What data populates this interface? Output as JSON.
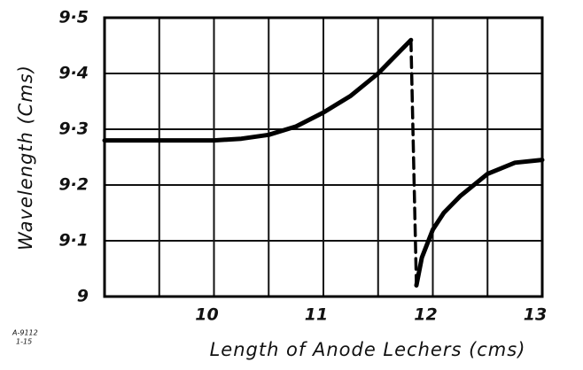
{
  "chart_data": {
    "type": "line",
    "xlabel": "Length of Anode Lechers (cms)",
    "ylabel": "Wavelength (Cms)",
    "annotations": [
      "A-9112",
      "1-15"
    ],
    "xlim": [
      9,
      13
    ],
    "ylim": [
      9,
      9.5
    ],
    "xticks": [
      10,
      11,
      12,
      13
    ],
    "yticks": [
      9,
      {
        "value": 9.1,
        "label": "9·1"
      },
      {
        "value": 9.2,
        "label": "9·2"
      },
      {
        "value": 9.3,
        "label": "9·3"
      },
      {
        "value": 9.4,
        "label": "9·4"
      },
      {
        "value": 9.5,
        "label": "9·5"
      }
    ],
    "xgrid": [
      9.5,
      10,
      10.5,
      11,
      11.5,
      12,
      12.5
    ],
    "grid": true,
    "series": [
      {
        "color": "#000000",
        "style": "solid",
        "x": [
          9,
          9.5,
          10,
          10.25,
          10.5,
          10.75,
          11,
          11.25,
          11.5,
          11.7,
          11.8
        ],
        "values": [
          9.28,
          9.28,
          9.28,
          9.283,
          9.29,
          9.305,
          9.33,
          9.36,
          9.4,
          9.44,
          9.46
        ]
      },
      {
        "color": "#000000",
        "style": "dashed",
        "x": [
          11.8,
          11.85
        ],
        "values": [
          9.46,
          9.02
        ]
      },
      {
        "color": "#000000",
        "style": "solid",
        "x": [
          11.85,
          11.9,
          12,
          12.1,
          12.25,
          12.5,
          12.75,
          13
        ],
        "values": [
          9.02,
          9.07,
          9.12,
          9.15,
          9.18,
          9.22,
          9.24,
          9.245
        ]
      }
    ]
  }
}
